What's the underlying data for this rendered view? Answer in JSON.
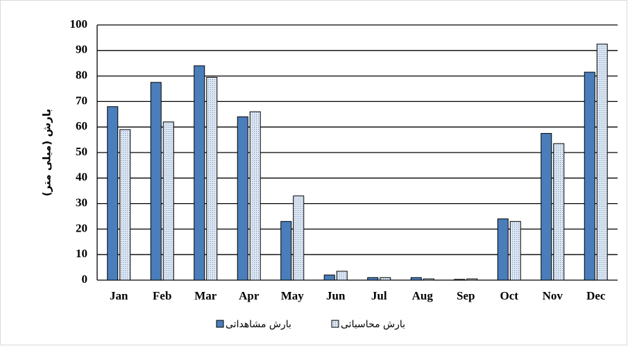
{
  "chart_data": {
    "type": "bar",
    "y_label": "بارش (میلی متر)",
    "categories": [
      "Jan",
      "Feb",
      "Mar",
      "Apr",
      "May",
      "Jun",
      "Jul",
      "Aug",
      "Sep",
      "Oct",
      "Nov",
      "Dec"
    ],
    "series": [
      {
        "name": "بارش مشاهداتی",
        "color": "#4a7ebb",
        "values": [
          68,
          77.5,
          84,
          64,
          23,
          2,
          1,
          1,
          0.3,
          24,
          57.5,
          81.5
        ]
      },
      {
        "name": "بارش محاسباتی",
        "color": "#dce6f2",
        "values": [
          59,
          62,
          79.5,
          66,
          33,
          3.5,
          1,
          0.5,
          0.5,
          23,
          53.5,
          92.5
        ]
      }
    ],
    "ylim": [
      0,
      100
    ],
    "yticks": [
      0,
      10,
      20,
      30,
      40,
      50,
      60,
      70,
      80,
      90,
      100
    ],
    "grid": true
  }
}
